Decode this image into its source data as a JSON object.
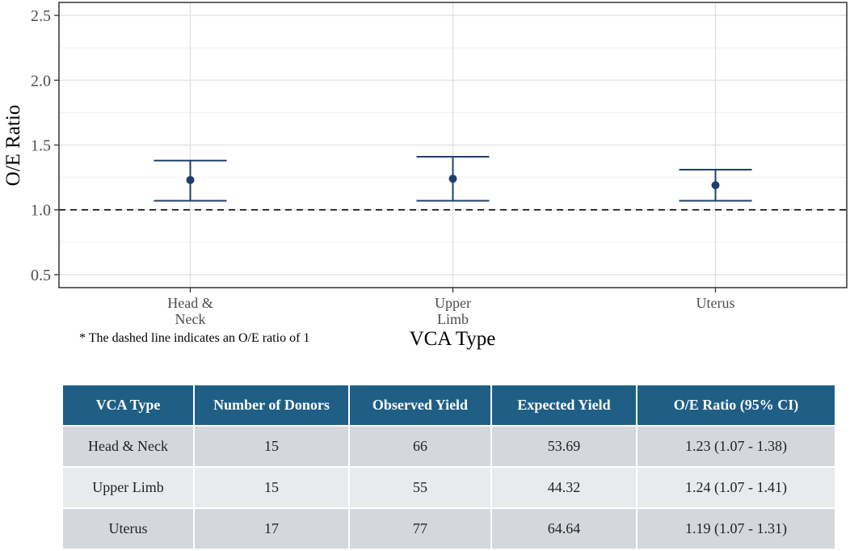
{
  "chart_data": {
    "type": "errorbar",
    "ylabel": "O/E Ratio",
    "xlabel": "VCA Type",
    "ylim": [
      0.4,
      2.6
    ],
    "yticks": [
      0.5,
      1.0,
      1.5,
      2.0,
      2.5
    ],
    "ytick_labels": [
      "0.5",
      "1.0",
      "1.5",
      "2.0",
      "2.5"
    ],
    "categories": [
      [
        "Head &",
        "Neck"
      ],
      [
        "Upper",
        "Limb"
      ],
      [
        "Uterus"
      ]
    ],
    "estimates": [
      1.23,
      1.24,
      1.19
    ],
    "ci_lower": [
      1.07,
      1.07,
      1.07
    ],
    "ci_upper": [
      1.38,
      1.41,
      1.31
    ],
    "reference_line": 1.0,
    "grid": true,
    "series_color": "#1f3f6e"
  },
  "note": "* The dashed line indicates an O/E ratio of 1",
  "table": {
    "header_color": "#1f5f86",
    "headers": [
      "VCA Type",
      "Number of Donors",
      "Observed Yield",
      "Expected Yield",
      "O/E Ratio (95% CI)"
    ],
    "rows": [
      [
        "Head & Neck",
        "15",
        "66",
        "53.69",
        "1.23 (1.07 - 1.38)"
      ],
      [
        "Upper Limb",
        "15",
        "55",
        "44.32",
        "1.24 (1.07 - 1.41)"
      ],
      [
        "Uterus",
        "17",
        "77",
        "64.64",
        "1.19 (1.07 - 1.31)"
      ]
    ]
  }
}
